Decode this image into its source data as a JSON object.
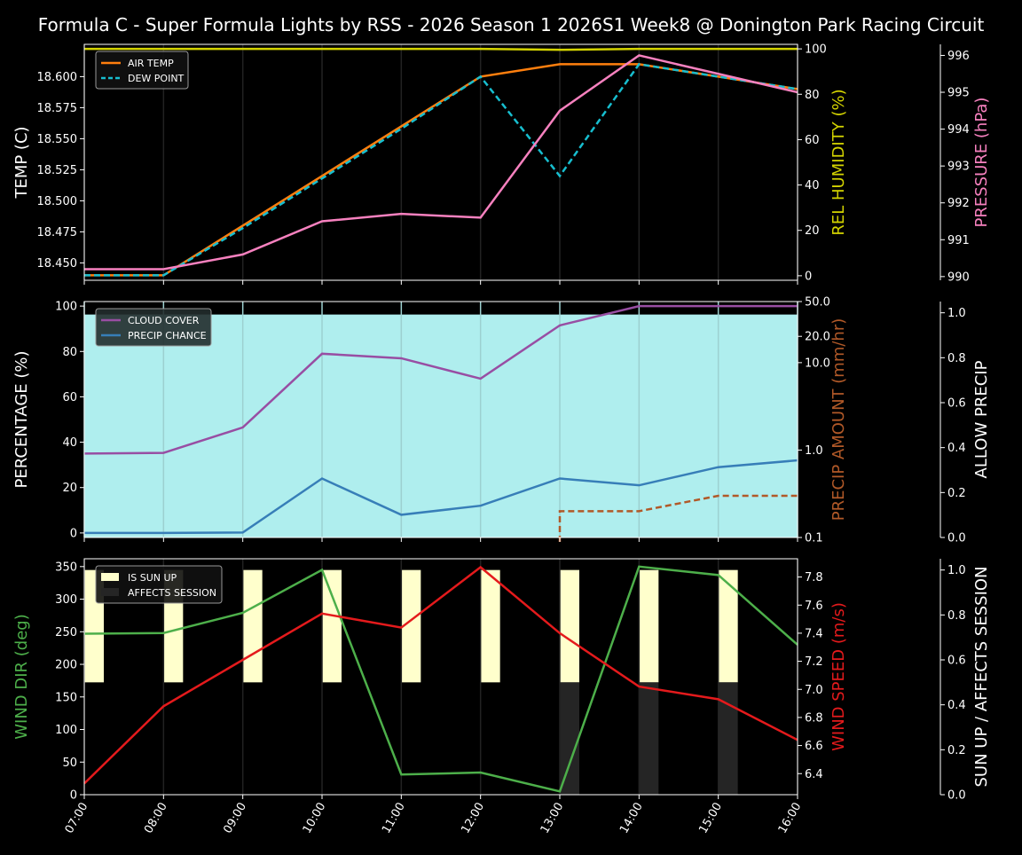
{
  "title": "Formula C - Super Formula Lights by RSS - 2026 Season 1 2026S1 Week8 @ Donington Park Racing Circuit",
  "chart_data": [
    {
      "type": "line",
      "x": [
        "07:00",
        "08:00",
        "09:00",
        "10:00",
        "11:00",
        "12:00",
        "13:00",
        "14:00",
        "15:00",
        "16:00"
      ],
      "ylabel": "TEMP (C)",
      "ylim": [
        18.436,
        18.626
      ],
      "yticks": [
        "18.450",
        "18.475",
        "18.500",
        "18.525",
        "18.550",
        "18.575",
        "18.600"
      ],
      "y2label": "REL HUMIDITY (%)",
      "y2lim": [
        -2,
        102
      ],
      "y2ticks": [
        "0",
        "20",
        "40",
        "60",
        "80",
        "100"
      ],
      "y3label": "PRESSURE (hPa)",
      "y3lim": [
        989.9,
        996.3
      ],
      "y3ticks": [
        "990",
        "991",
        "992",
        "993",
        "994",
        "995",
        "996"
      ],
      "legend": "top-left",
      "series": [
        {
          "name": "AIR TEMP",
          "axis": "y",
          "color": "#ff7f0e",
          "style": "solid",
          "values": [
            18.44,
            18.44,
            18.48,
            18.52,
            18.56,
            18.6,
            18.61,
            18.61,
            18.6,
            18.59
          ]
        },
        {
          "name": "DEW POINT",
          "axis": "y",
          "color": "#17becf",
          "style": "dashed",
          "values": [
            18.44,
            18.44,
            18.478,
            18.518,
            18.558,
            18.6,
            18.52,
            18.61,
            18.6,
            18.59
          ]
        },
        {
          "axis": "y2",
          "color": "#d4d400",
          "style": "solid",
          "values": [
            100,
            100,
            100,
            100,
            100,
            100,
            99.6,
            100,
            100,
            100
          ]
        },
        {
          "axis": "y3",
          "color": "#f781bf",
          "style": "solid",
          "values": [
            990.2,
            990.2,
            990.6,
            991.5,
            991.7,
            991.6,
            994.5,
            996.0,
            995.5,
            995.0
          ]
        }
      ]
    },
    {
      "type": "line",
      "x": [
        "07:00",
        "08:00",
        "09:00",
        "10:00",
        "11:00",
        "12:00",
        "13:00",
        "14:00",
        "15:00",
        "16:00"
      ],
      "ylabel": "PERCENTAGE (%)",
      "ylim": [
        -2,
        102
      ],
      "yticks": [
        "0",
        "20",
        "40",
        "60",
        "80",
        "100"
      ],
      "y2label": "PRECIP AMOUNT (mm/hr)",
      "y2scale": "log",
      "y2lim": [
        0.1,
        50
      ],
      "y2ticks": [
        "0.1",
        "1.0",
        "10.0",
        "20.0",
        "50.0"
      ],
      "y3label": "ALLOW PRECIP",
      "y3lim": [
        0,
        1.05
      ],
      "y3ticks": [
        "0.0",
        "0.2",
        "0.4",
        "0.6",
        "0.8",
        "1.0"
      ],
      "legend": "top-left",
      "series": [
        {
          "name": "CLOUD COVER",
          "axis": "y",
          "color": "#984ea3",
          "style": "solid",
          "values": [
            35,
            35.3,
            46.5,
            79,
            77,
            68,
            91.5,
            100,
            100,
            100
          ]
        },
        {
          "name": "PRECIP CHANCE",
          "axis": "y",
          "color": "#377eb8",
          "style": "solid",
          "values": [
            0,
            0,
            0.2,
            24,
            8,
            12,
            24,
            21,
            29,
            32
          ]
        },
        {
          "axis": "y2",
          "color": "#b15928",
          "style": "dashed",
          "values": [
            0,
            0,
            0,
            0,
            0,
            0,
            0.2,
            0.2,
            0.3,
            0.3
          ]
        },
        {
          "axis": "y3",
          "color": "#afeeee",
          "style": "fill",
          "values": [
            1,
            1,
            1,
            1,
            1,
            1,
            1,
            1,
            1,
            1
          ]
        }
      ]
    },
    {
      "type": "line",
      "x": [
        "07:00",
        "08:00",
        "09:00",
        "10:00",
        "11:00",
        "12:00",
        "13:00",
        "14:00",
        "15:00",
        "16:00"
      ],
      "ylabel": "WIND DIR (deg)",
      "ylim": [
        0,
        362
      ],
      "yticks": [
        "0",
        "50",
        "100",
        "150",
        "200",
        "250",
        "300",
        "350"
      ],
      "y2label": "WIND SPEED (m/s)",
      "y2lim": [
        6.25,
        7.93
      ],
      "y2ticks": [
        "6.4",
        "6.6",
        "6.8",
        "7.0",
        "7.2",
        "7.4",
        "7.6",
        "7.8"
      ],
      "y3label": "SUN UP / AFFECTS SESSION",
      "y3lim": [
        0,
        1.05
      ],
      "y3ticks": [
        "0.0",
        "0.2",
        "0.4",
        "0.6",
        "0.8",
        "1.0"
      ],
      "legend": "top-left",
      "series": [
        {
          "axis": "y",
          "color": "#4daf4a",
          "style": "solid",
          "values": [
            247,
            248,
            279,
            345,
            31,
            34,
            5,
            350,
            337,
            230
          ]
        },
        {
          "axis": "y2",
          "color": "#e41a1c",
          "style": "solid",
          "values": [
            6.33,
            6.88,
            7.21,
            7.54,
            7.44,
            7.87,
            7.4,
            7.02,
            6.93,
            6.64
          ]
        },
        {
          "name": "IS SUN UP",
          "axis": "y3",
          "color": "#ffffcc",
          "style": "bar",
          "values": [
            1,
            1,
            1,
            1,
            1,
            1,
            1,
            1,
            1,
            0
          ]
        },
        {
          "name": "AFFECTS SESSION",
          "axis": "y3",
          "color": "#252525",
          "style": "bar",
          "values": [
            0,
            0,
            0,
            0,
            0,
            0,
            1,
            1,
            1,
            0
          ]
        }
      ]
    }
  ]
}
